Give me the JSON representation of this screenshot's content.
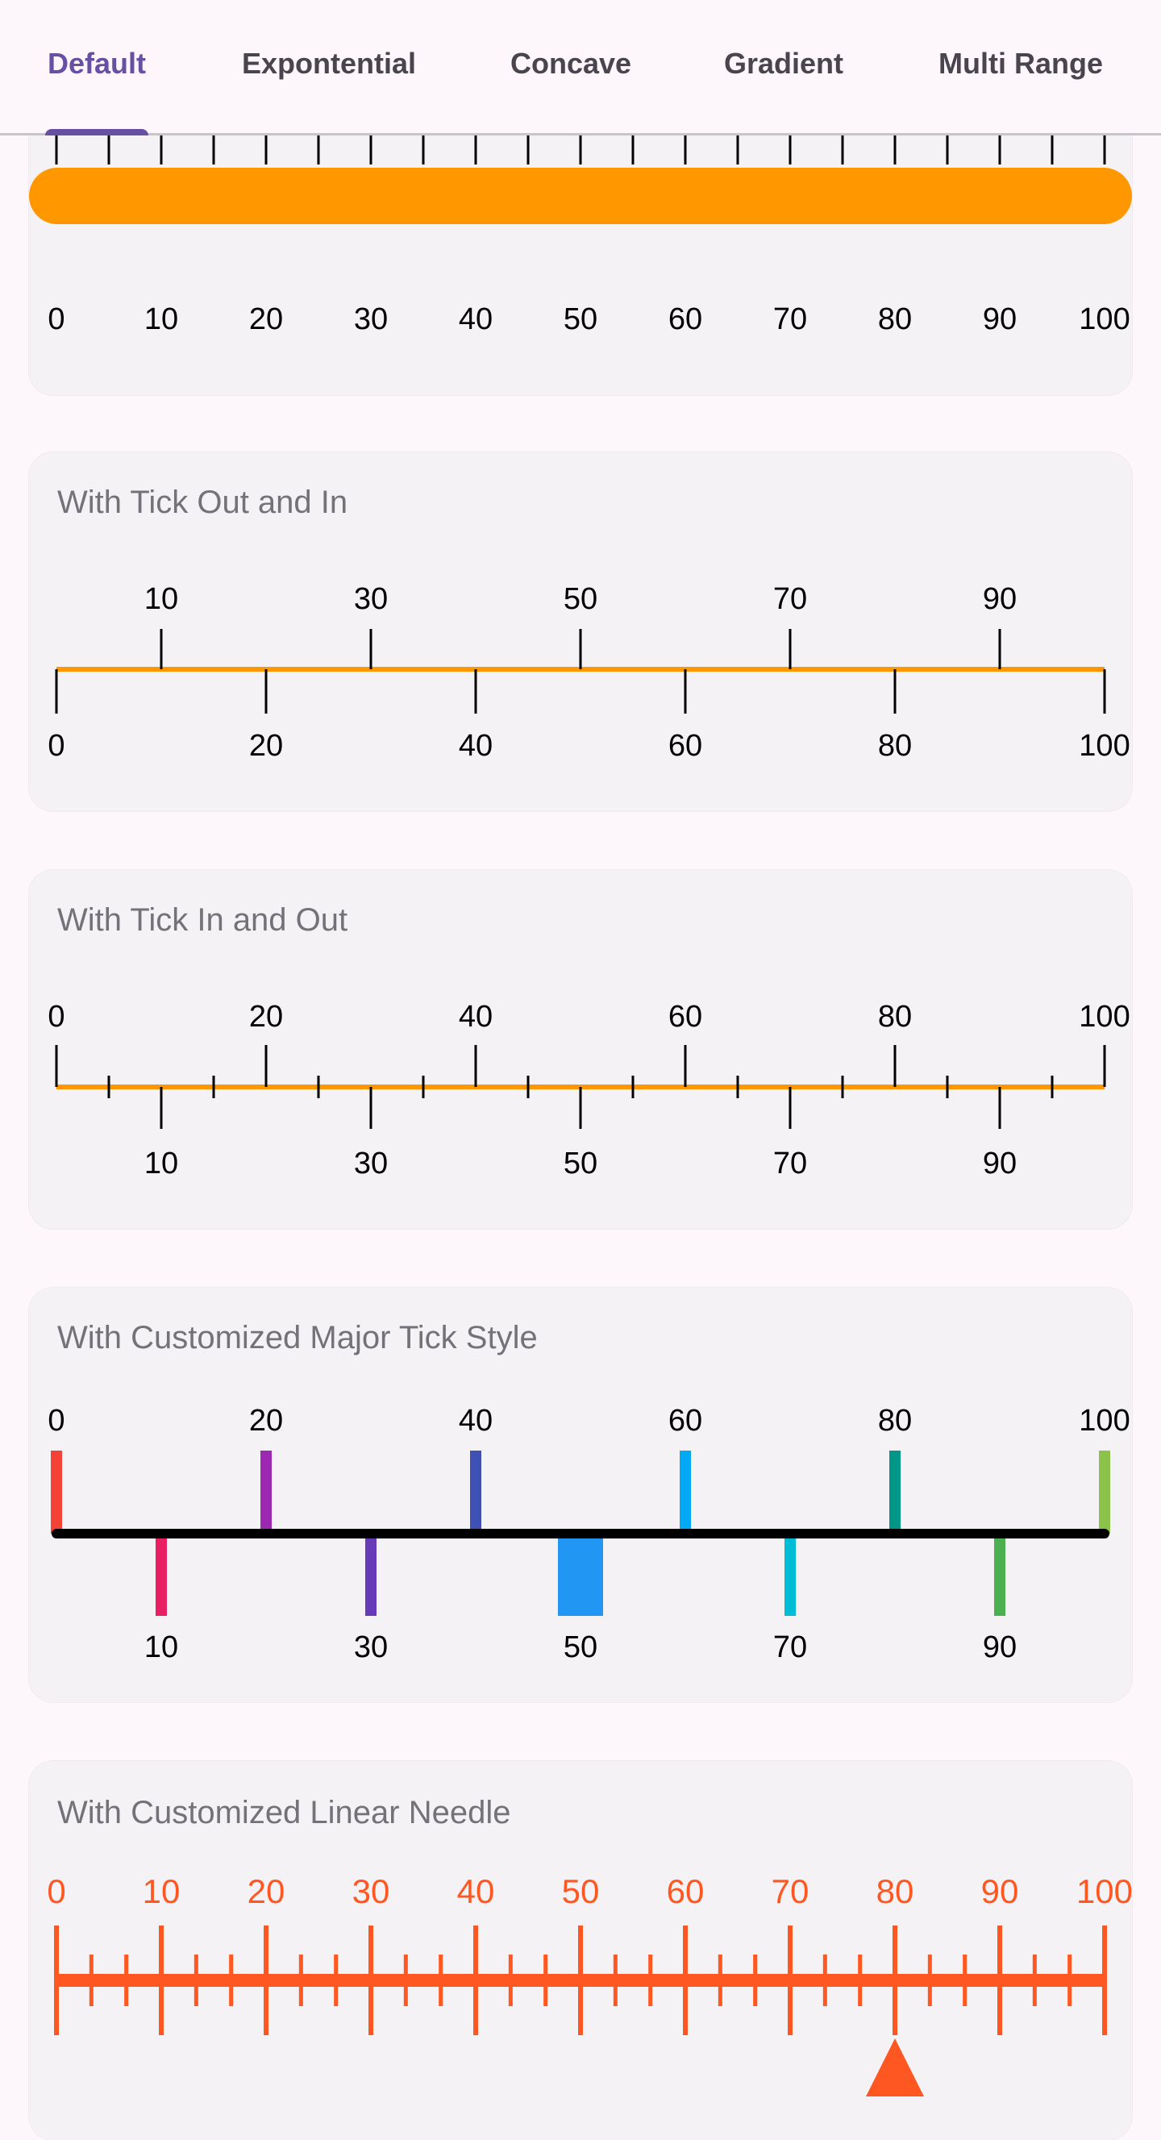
{
  "tabs": [
    {
      "label": "Default",
      "active": true
    },
    {
      "label": "Expontential",
      "active": false
    },
    {
      "label": "Concave",
      "active": false
    },
    {
      "label": "Gradient",
      "active": false
    },
    {
      "label": "Multi Range",
      "active": false
    }
  ],
  "colors": {
    "accent": "#6750a4",
    "orange": "#ff9800",
    "needle_orange": "#ff5722",
    "tick_black": "#000000"
  },
  "gauges": {
    "default": {
      "title": "",
      "min": 0,
      "max": 100,
      "interval": 10,
      "minor_ticks_per_interval": 1,
      "labels": [
        "0",
        "10",
        "20",
        "30",
        "40",
        "50",
        "60",
        "70",
        "80",
        "90",
        "100"
      ]
    },
    "tick_out_in": {
      "title": "With Tick Out and In",
      "min": 0,
      "max": 100,
      "interval": 10,
      "labels_above": [
        "10",
        "30",
        "50",
        "70",
        "90"
      ],
      "labels_below": [
        "0",
        "20",
        "40",
        "60",
        "80",
        "100"
      ]
    },
    "tick_in_out": {
      "title": "With Tick In and Out",
      "min": 0,
      "max": 100,
      "interval": 10,
      "labels_above": [
        "0",
        "20",
        "40",
        "60",
        "80",
        "100"
      ],
      "labels_below": [
        "10",
        "30",
        "50",
        "70",
        "90"
      ]
    },
    "custom_major": {
      "title": "With Customized Major Tick Style",
      "min": 0,
      "max": 100,
      "interval": 10,
      "labels_above": [
        "0",
        "20",
        "40",
        "60",
        "80",
        "100"
      ],
      "labels_below": [
        "10",
        "30",
        "50",
        "70",
        "90"
      ],
      "tick_colors": [
        "#f44336",
        "#e91e63",
        "#9c27b0",
        "#673ab7",
        "#3f51b5",
        "#2196f3",
        "#03a9f4",
        "#00bcd4",
        "#009688",
        "#4caf50",
        "#8bc34a"
      ]
    },
    "custom_needle": {
      "title": "With Customized Linear Needle",
      "min": 0,
      "max": 100,
      "interval": 10,
      "labels": [
        "0",
        "10",
        "20",
        "30",
        "40",
        "50",
        "60",
        "70",
        "80",
        "90",
        "100"
      ],
      "needle_value": 80
    }
  }
}
